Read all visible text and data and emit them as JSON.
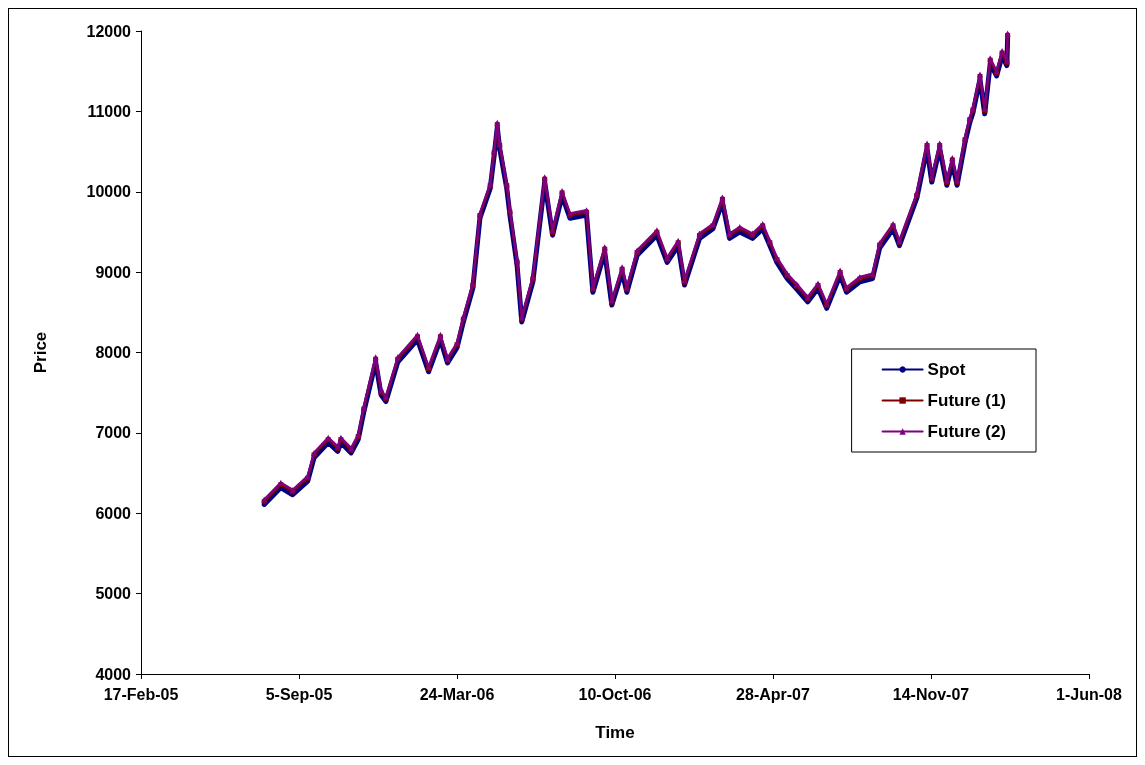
{
  "chart_data": {
    "type": "line",
    "xlabel": "Time",
    "ylabel": "Price",
    "x": [
      "2005-07-23",
      "2005-08-13",
      "2005-08-28",
      "2005-09-16",
      "2005-09-24",
      "2005-10-12",
      "2005-10-24",
      "2005-10-28",
      "2005-11-10",
      "2005-11-19",
      "2005-11-26",
      "2005-12-11",
      "2005-12-18",
      "2005-12-24",
      "2006-01-08",
      "2006-02-02",
      "2006-02-16",
      "2006-03-03",
      "2006-03-12",
      "2006-03-24",
      "2006-04-01",
      "2006-04-13",
      "2006-04-22",
      "2006-05-05",
      "2006-05-10",
      "2006-05-14",
      "2006-05-17",
      "2006-05-26",
      "2006-05-30",
      "2006-06-08",
      "2006-06-14",
      "2006-06-28",
      "2006-07-13",
      "2006-07-23",
      "2006-08-04",
      "2006-08-14",
      "2006-09-04",
      "2006-09-12",
      "2006-09-27",
      "2006-10-06",
      "2006-10-19",
      "2006-10-25",
      "2006-11-07",
      "2006-12-02",
      "2006-12-15",
      "2006-12-29",
      "2007-01-06",
      "2007-01-25",
      "2007-02-11",
      "2007-02-23",
      "2007-03-04",
      "2007-03-17",
      "2007-04-02",
      "2007-04-15",
      "2007-04-24",
      "2007-05-03",
      "2007-05-16",
      "2007-05-28",
      "2007-06-11",
      "2007-06-24",
      "2007-07-05",
      "2007-07-22",
      "2007-07-30",
      "2007-08-16",
      "2007-09-01",
      "2007-09-10",
      "2007-09-27",
      "2007-10-05",
      "2007-10-27",
      "2007-11-09",
      "2007-11-15",
      "2007-11-25",
      "2007-12-04",
      "2007-12-11",
      "2007-12-17",
      "2007-12-27",
      "2008-01-02",
      "2008-01-06",
      "2008-01-15",
      "2008-01-21",
      "2008-01-28",
      "2008-02-05",
      "2008-02-12",
      "2008-02-18",
      "2008-02-19"
    ],
    "series": [
      {
        "name": "Spot",
        "color": "#000080",
        "marker": "none",
        "values": [
          6110,
          6320,
          6230,
          6400,
          6690,
          6880,
          6770,
          6880,
          6750,
          6920,
          7260,
          7880,
          7470,
          7390,
          7880,
          8160,
          7760,
          8160,
          7870,
          8060,
          8380,
          8800,
          9670,
          10040,
          10450,
          10800,
          10540,
          10040,
          9710,
          9090,
          8380,
          8880,
          10120,
          9460,
          9950,
          9670,
          9710,
          8750,
          9250,
          8590,
          9000,
          8750,
          9210,
          9460,
          9120,
          9330,
          8840,
          9420,
          9540,
          9870,
          9420,
          9500,
          9420,
          9540,
          9330,
          9120,
          8920,
          8790,
          8630,
          8800,
          8550,
          8960,
          8750,
          8880,
          8920,
          9300,
          9540,
          9330,
          9920,
          10540,
          10120,
          10540,
          10080,
          10360,
          10080,
          10610,
          10860,
          10980,
          11400,
          10970,
          11600,
          11440,
          11690,
          11570,
          11910
        ]
      },
      {
        "name": "Future (1)",
        "color": "#800000",
        "marker": "square",
        "values": [
          6145,
          6355,
          6265,
          6435,
          6725,
          6915,
          6805,
          6915,
          6785,
          6955,
          7295,
          7915,
          7505,
          7425,
          7915,
          8195,
          7795,
          8195,
          7905,
          8095,
          8415,
          8835,
          9705,
          10075,
          10485,
          10835,
          10575,
          10075,
          9745,
          9125,
          8415,
          8915,
          10155,
          9495,
          9985,
          9705,
          9745,
          8785,
          9285,
          8625,
          9035,
          8785,
          9245,
          9495,
          9155,
          9365,
          8875,
          9455,
          9575,
          9905,
          9455,
          9535,
          9455,
          9575,
          9365,
          9155,
          8955,
          8825,
          8665,
          8835,
          8585,
          8995,
          8785,
          8915,
          8955,
          9335,
          9575,
          9365,
          9955,
          10575,
          10155,
          10575,
          10115,
          10395,
          10115,
          10645,
          10895,
          11015,
          11435,
          11005,
          11635,
          11475,
          11725,
          11605,
          11945
        ]
      },
      {
        "name": "Future (2)",
        "color": "#800080",
        "marker": "triangle",
        "values": [
          6170,
          6380,
          6290,
          6460,
          6750,
          6940,
          6830,
          6940,
          6810,
          6980,
          7320,
          7940,
          7530,
          7450,
          7940,
          8220,
          7820,
          8220,
          7930,
          8120,
          8440,
          8860,
          9730,
          10100,
          10510,
          10860,
          10600,
          10100,
          9770,
          9150,
          8440,
          8940,
          10180,
          9520,
          10010,
          9730,
          9770,
          8810,
          9310,
          8650,
          9060,
          8810,
          9270,
          9520,
          9180,
          9390,
          8900,
          9480,
          9600,
          9930,
          9480,
          9560,
          9480,
          9600,
          9390,
          9180,
          8980,
          8850,
          8690,
          8860,
          8610,
          9020,
          8810,
          8940,
          8980,
          9360,
          9600,
          9390,
          9980,
          10600,
          10180,
          10600,
          10140,
          10420,
          10140,
          10670,
          10920,
          11040,
          11460,
          11030,
          11660,
          11500,
          11750,
          11630,
          11970
        ]
      }
    ],
    "xlim": [
      "2005-02-17",
      "2008-06-01"
    ],
    "xticks": [
      {
        "value": "2005-02-17",
        "label": "17-Feb-05"
      },
      {
        "value": "2005-09-05",
        "label": "5-Sep-05"
      },
      {
        "value": "2006-03-24",
        "label": "24-Mar-06"
      },
      {
        "value": "2006-10-10",
        "label": "10-Oct-06"
      },
      {
        "value": "2007-04-28",
        "label": "28-Apr-07"
      },
      {
        "value": "2007-11-14",
        "label": "14-Nov-07"
      },
      {
        "value": "2008-06-01",
        "label": "1-Jun-08"
      }
    ],
    "ylim": [
      4000,
      12000
    ],
    "yticks": [
      4000,
      5000,
      6000,
      7000,
      8000,
      9000,
      10000,
      11000,
      12000
    ],
    "grid": false,
    "legend": "right",
    "line_style": "solid"
  }
}
